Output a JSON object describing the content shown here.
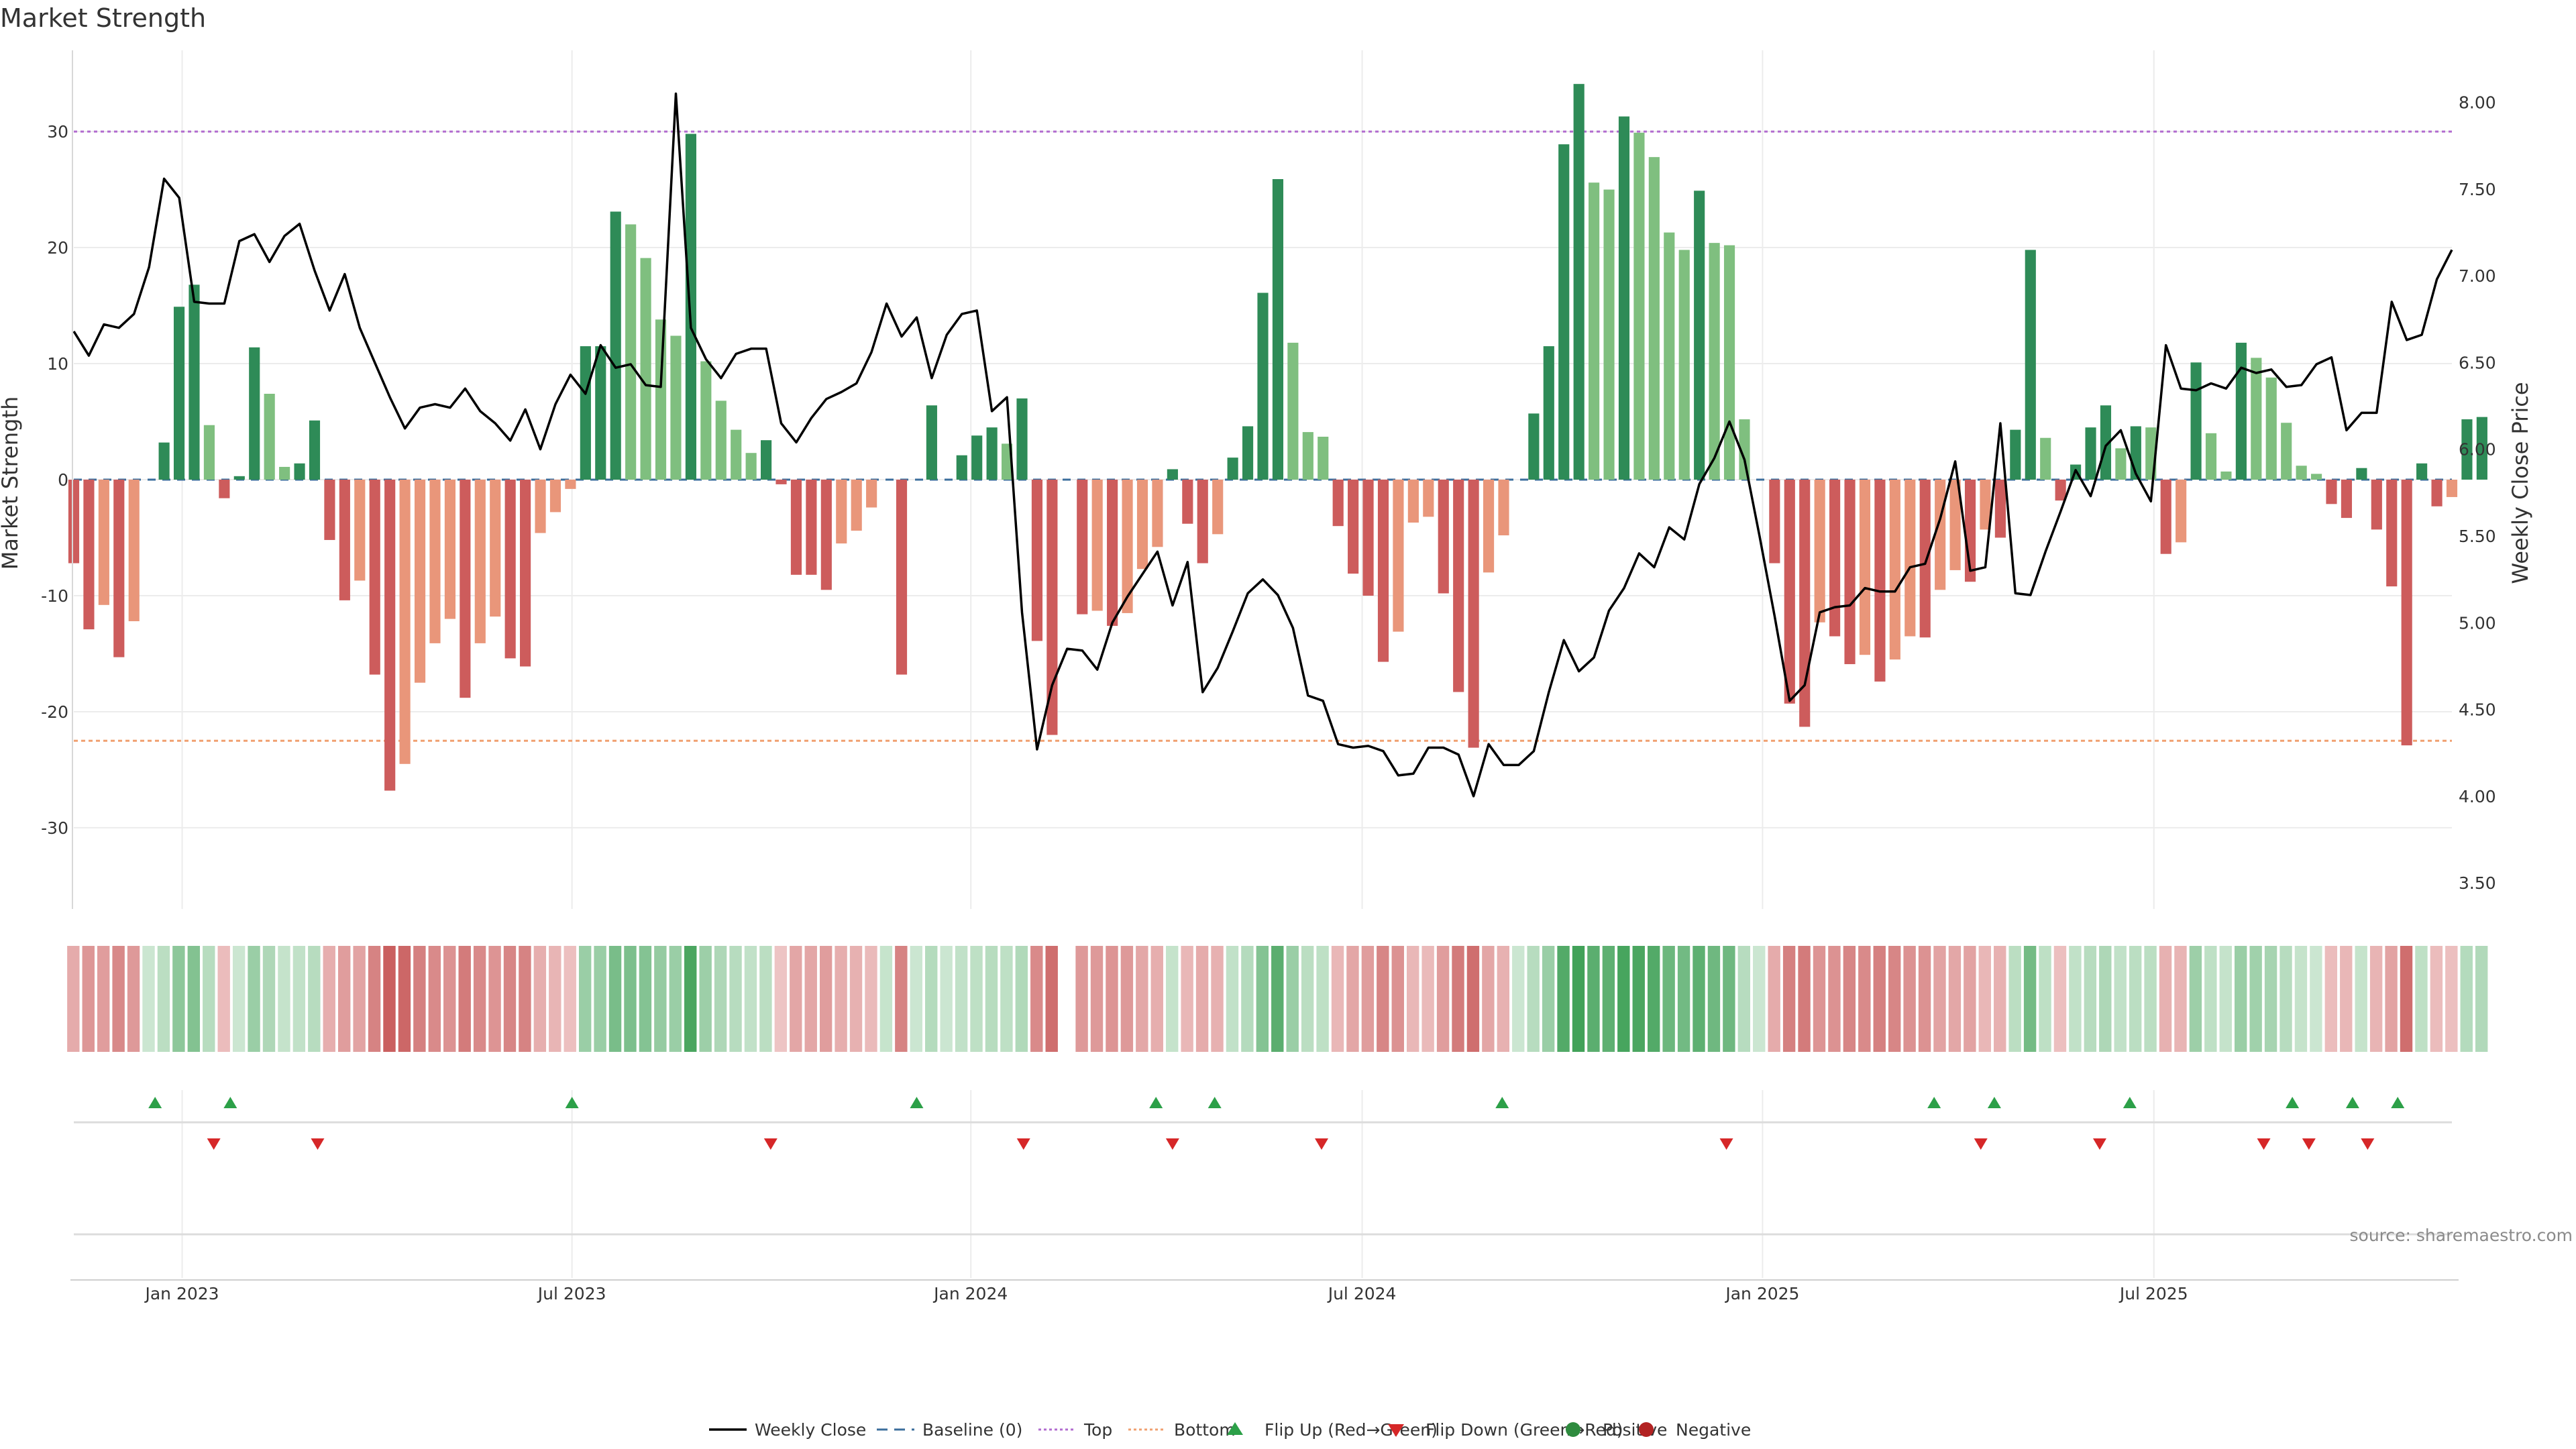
{
  "chart_data": {
    "type": "bar",
    "title": "Market Strength",
    "ylabel": "Market Strength",
    "ylabel_right": "Weekly Close Price",
    "ylim": [
      -37,
      37
    ],
    "ylim_right": [
      3.35,
      8.3
    ],
    "yticks": [
      -30,
      -20,
      -10,
      0,
      10,
      20,
      30
    ],
    "yticks_right": [
      "3.50",
      "4.00",
      "4.50",
      "5.00",
      "5.50",
      "6.00",
      "6.50",
      "7.00",
      "7.50",
      "8.00"
    ],
    "x_range": [
      0,
      158
    ],
    "x_ticks": [
      {
        "pos": 7.2,
        "label": "Jan 2023"
      },
      {
        "pos": 33.1,
        "label": "Jul 2023"
      },
      {
        "pos": 59.6,
        "label": "Jan 2024"
      },
      {
        "pos": 85.6,
        "label": "Jul 2024"
      },
      {
        "pos": 112.2,
        "label": "Jan 2025"
      },
      {
        "pos": 138.2,
        "label": "Jul 2025"
      }
    ],
    "top_line": 30,
    "bottom_line": -22.5,
    "source": "source: sharemaestro.com",
    "strength": [
      -7.2,
      -12.9,
      -10.8,
      -15.3,
      -12.2,
      0,
      3.2,
      14.9,
      16.8,
      4.7,
      -1.6,
      0.3,
      11.4,
      7.4,
      1.1,
      1.4,
      5.1,
      -5.2,
      -10.4,
      -8.7,
      -16.8,
      -26.8,
      -24.5,
      -17.5,
      -14.1,
      -12,
      -18.8,
      -14.1,
      -11.8,
      -15.4,
      -16.1,
      -4.6,
      -2.8,
      -0.8,
      11.5,
      11.5,
      23.1,
      22,
      19.1,
      13.8,
      12.4,
      29.8,
      10.2,
      6.8,
      4.3,
      2.3,
      3.4,
      -0.4,
      -8.2,
      -8.2,
      -9.5,
      -5.5,
      -4.4,
      -2.4,
      0,
      -16.8,
      0,
      6.4,
      0,
      2.1,
      3.8,
      4.5,
      3.1,
      7,
      -13.9,
      -22,
      0,
      -11.6,
      -11.3,
      -12.6,
      -11.5,
      -7.7,
      -5.8,
      0.9,
      -3.8,
      -7.2,
      -4.7,
      1.9,
      4.6,
      16.1,
      25.9,
      11.8,
      4.1,
      3.7,
      -4,
      -8.1,
      -10,
      -15.7,
      -13.1,
      -3.7,
      -3.2,
      -9.8,
      -18.3,
      -23.1,
      -8,
      -4.8,
      0,
      5.7,
      11.5,
      28.9,
      34.1,
      25.6,
      25,
      31.3,
      29.9,
      27.8,
      21.3,
      19.8,
      24.9,
      20.4,
      20.2,
      5.2,
      0,
      -7.2,
      -19.3,
      -21.3,
      -12.3,
      -13.5,
      -15.9,
      -15.1,
      -17.4,
      -15.5,
      -13.5,
      -13.6,
      -9.5,
      -7.8,
      -8.8,
      -4.3,
      -5,
      4.3,
      19.8,
      3.6,
      -1.8,
      1.3,
      4.5,
      6.4,
      2.7,
      4.6,
      4.5,
      -6.4,
      -5.4,
      10.1,
      4,
      0.7,
      11.8,
      10.5,
      8.8,
      4.9,
      1.2,
      0.5,
      -2.1,
      -3.3,
      1,
      -4.3,
      -9.2,
      -22.9,
      1.4,
      -2.3,
      -1.5,
      5.2,
      5.4
    ],
    "heat": [
      0.32,
      0.47,
      0.42,
      0.56,
      0.45,
      0.12,
      0.22,
      0.5,
      0.56,
      0.24,
      0.2,
      0.12,
      0.42,
      0.3,
      0.16,
      0.18,
      0.24,
      0.3,
      0.42,
      0.38,
      0.6,
      0.85,
      0.8,
      0.62,
      0.55,
      0.5,
      0.66,
      0.55,
      0.48,
      0.58,
      0.6,
      0.3,
      0.25,
      0.18,
      0.42,
      0.42,
      0.62,
      0.6,
      0.55,
      0.45,
      0.42,
      0.9,
      0.4,
      0.3,
      0.24,
      0.18,
      0.22,
      0.15,
      0.36,
      0.36,
      0.42,
      0.3,
      0.28,
      0.22,
      0.15,
      0.6,
      0.12,
      0.26,
      0.12,
      0.18,
      0.2,
      0.24,
      0.2,
      0.28,
      0.55,
      0.75,
      0.12,
      0.45,
      0.45,
      0.48,
      0.45,
      0.35,
      0.3,
      0.16,
      0.24,
      0.32,
      0.28,
      0.18,
      0.26,
      0.55,
      0.8,
      0.42,
      0.22,
      0.2,
      0.24,
      0.36,
      0.42,
      0.58,
      0.5,
      0.24,
      0.22,
      0.42,
      0.66,
      0.75,
      0.36,
      0.28,
      0.12,
      0.24,
      0.42,
      0.85,
      0.95,
      0.8,
      0.78,
      0.92,
      0.9,
      0.85,
      0.7,
      0.66,
      0.78,
      0.68,
      0.68,
      0.24,
      0.12,
      0.32,
      0.62,
      0.66,
      0.48,
      0.5,
      0.58,
      0.55,
      0.62,
      0.58,
      0.5,
      0.5,
      0.38,
      0.35,
      0.38,
      0.24,
      0.28,
      0.22,
      0.65,
      0.2,
      0.18,
      0.18,
      0.24,
      0.3,
      0.18,
      0.22,
      0.22,
      0.28,
      0.26,
      0.4,
      0.2,
      0.16,
      0.42,
      0.38,
      0.34,
      0.24,
      0.16,
      0.12,
      0.2,
      0.24,
      0.16,
      0.26,
      0.38,
      0.75,
      0.2,
      0.2,
      0.18,
      0.26,
      0.28
    ],
    "price": [
      6.68,
      6.54,
      6.72,
      6.7,
      6.78,
      7.05,
      7.56,
      7.45,
      6.85,
      6.84,
      6.84,
      7.2,
      7.24,
      7.08,
      7.23,
      7.3,
      7.03,
      6.8,
      7.01,
      6.7,
      6.5,
      6.3,
      6.12,
      6.24,
      6.26,
      6.24,
      6.35,
      6.22,
      6.15,
      6.05,
      6.23,
      6.0,
      6.26,
      6.43,
      6.32,
      6.6,
      6.47,
      6.49,
      6.37,
      6.36,
      8.05,
      6.7,
      6.52,
      6.41,
      6.55,
      6.58,
      6.58,
      6.15,
      6.04,
      6.18,
      6.29,
      6.33,
      6.38,
      6.56,
      6.84,
      6.65,
      6.76,
      6.41,
      6.66,
      6.78,
      6.8,
      6.22,
      6.3,
      5.06,
      4.27,
      4.64,
      4.85,
      4.84,
      4.73,
      5.0,
      5.15,
      5.28,
      5.41,
      5.1,
      5.35,
      4.6,
      4.74,
      4.95,
      5.17,
      5.25,
      5.16,
      4.97,
      4.58,
      4.55,
      4.3,
      4.28,
      4.29,
      4.26,
      4.12,
      4.13,
      4.28,
      4.28,
      4.24,
      4.0,
      4.3,
      4.18,
      4.18,
      4.26,
      4.6,
      4.9,
      4.72,
      4.8,
      5.07,
      5.2,
      5.4,
      5.32,
      5.55,
      5.48,
      5.8,
      5.95,
      6.16,
      5.94,
      5.5,
      5.04,
      4.55,
      4.64,
      5.06,
      5.09,
      5.1,
      5.2,
      5.18,
      5.18,
      5.32,
      5.34,
      5.6,
      5.93,
      5.3,
      5.32,
      6.15,
      5.17,
      5.16,
      5.41,
      5.64,
      5.88,
      5.73,
      6.02,
      6.11,
      5.86,
      5.7,
      6.6,
      6.35,
      6.34,
      6.38,
      6.35,
      6.47,
      6.44,
      6.46,
      6.36,
      6.37,
      6.49,
      6.53,
      6.11,
      6.21,
      6.21,
      6.85,
      6.63,
      6.66,
      6.98,
      7.15
    ],
    "flip_up": [
      5.4,
      10.4,
      33.1,
      56.0,
      71.9,
      75.8,
      94.9,
      123.6,
      127.6,
      136.6,
      147.4,
      151.4,
      154.4
    ],
    "flip_down": [
      9.3,
      16.2,
      46.3,
      63.1,
      73.0,
      82.9,
      109.8,
      126.7,
      134.6,
      145.5,
      148.5,
      152.4
    ],
    "legend": [
      {
        "label": "Weekly Close",
        "kind": "line",
        "color": "#000000"
      },
      {
        "label": "Baseline (0)",
        "kind": "dash",
        "color": "#3b6e9c"
      },
      {
        "label": "Top",
        "kind": "dot",
        "color": "#b26ccf"
      },
      {
        "label": "Bottom",
        "kind": "dot",
        "color": "#f0a070"
      },
      {
        "label": "Flip Up (Red→Green)",
        "kind": "tri-up",
        "color": "#2ca048"
      },
      {
        "label": "Flip Down (Green→Red)",
        "kind": "tri-down",
        "color": "#d62728"
      },
      {
        "label": "Positive",
        "kind": "circle",
        "color": "#2e8b3e"
      },
      {
        "label": "Negative",
        "kind": "circle",
        "color": "#b22222"
      }
    ]
  }
}
